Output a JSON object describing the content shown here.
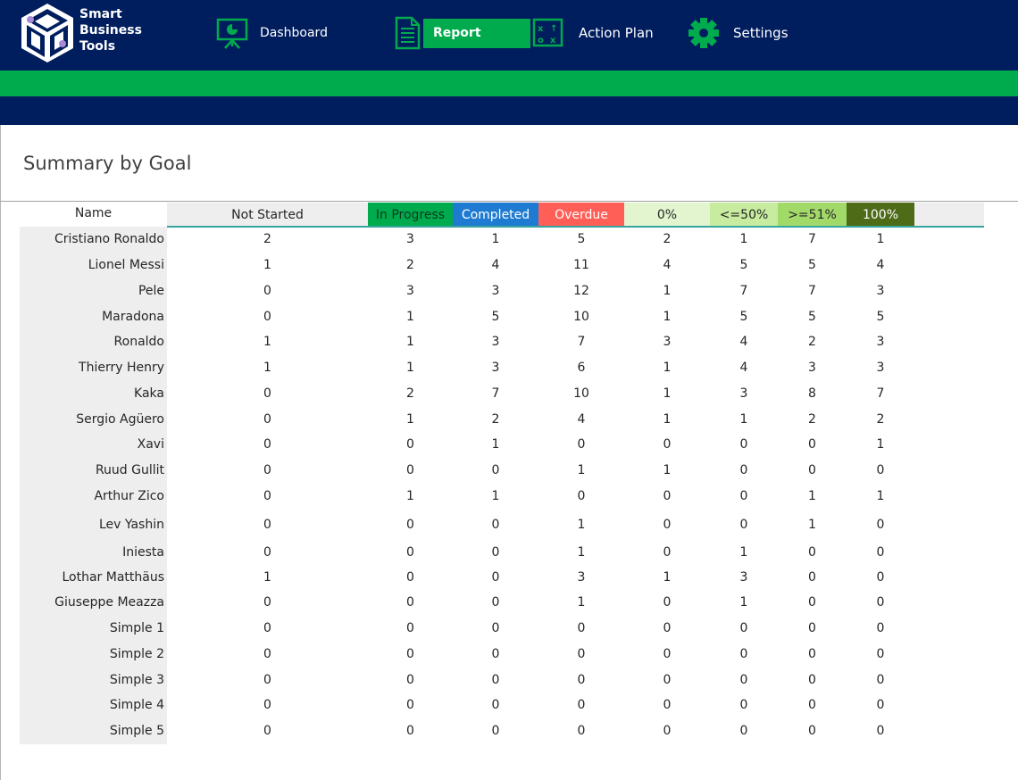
{
  "brand": {
    "lines": [
      "Smart",
      "Business",
      "Tools"
    ]
  },
  "nav": {
    "items": [
      {
        "label": "Dashboard",
        "icon": "presentation-board-icon"
      },
      {
        "label": "Report",
        "icon": "document-icon"
      },
      {
        "label": "Action Plan",
        "icon": "strategy-board-icon"
      },
      {
        "label": "Settings",
        "icon": "gear-icon"
      }
    ],
    "active": "Report"
  },
  "colors": {
    "navy": "#001d5e",
    "green": "#00ab4e",
    "in_progress": "#00ab4e",
    "completed": "#1f7bd1",
    "overdue": "#ff5f57",
    "pct0": "#e2f5cf",
    "pct50": "#c7ec9f",
    "pct51": "#a2da6a",
    "pct100": "#4e6b18"
  },
  "page": {
    "title": "Summary by Goal"
  },
  "table": {
    "name_header": "Name",
    "columns": [
      {
        "key": "ns",
        "label": "Not Started"
      },
      {
        "key": "ip",
        "label": "In Progress"
      },
      {
        "key": "co",
        "label": "Completed"
      },
      {
        "key": "ov",
        "label": "Overdue"
      },
      {
        "key": "p0",
        "label": "0%"
      },
      {
        "key": "p50",
        "label": "<=50%"
      },
      {
        "key": "p51",
        "label": ">=51%"
      },
      {
        "key": "p100",
        "label": "100%"
      }
    ],
    "rows": [
      {
        "name": "Cristiano Ronaldo",
        "values": [
          "2",
          "3",
          "1",
          "5",
          "2",
          "1",
          "7",
          "1"
        ]
      },
      {
        "name": "Lionel Messi",
        "values": [
          "1",
          "2",
          "4",
          "11",
          "4",
          "5",
          "5",
          "4"
        ]
      },
      {
        "name": "Pele",
        "values": [
          "0",
          "3",
          "3",
          "12",
          "1",
          "7",
          "7",
          "3"
        ]
      },
      {
        "name": "Maradona",
        "values": [
          "0",
          "1",
          "5",
          "10",
          "1",
          "5",
          "5",
          "5"
        ]
      },
      {
        "name": "Ronaldo",
        "values": [
          "1",
          "1",
          "3",
          "7",
          "3",
          "4",
          "2",
          "3"
        ]
      },
      {
        "name": "Thierry Henry",
        "values": [
          "1",
          "1",
          "3",
          "6",
          "1",
          "4",
          "3",
          "3"
        ]
      },
      {
        "name": "Kaka",
        "values": [
          "0",
          "2",
          "7",
          "10",
          "1",
          "3",
          "8",
          "7"
        ]
      },
      {
        "name": "Sergio Agüero",
        "values": [
          "0",
          "1",
          "2",
          "4",
          "1",
          "1",
          "2",
          "2"
        ]
      },
      {
        "name": "Xavi",
        "values": [
          "0",
          "0",
          "1",
          "0",
          "0",
          "0",
          "0",
          "1"
        ]
      },
      {
        "name": "Ruud Gullit",
        "values": [
          "0",
          "0",
          "0",
          "1",
          "1",
          "0",
          "0",
          "0"
        ]
      },
      {
        "name": "Arthur Zico",
        "values": [
          "0",
          "1",
          "1",
          "0",
          "0",
          "0",
          "1",
          "1"
        ]
      },
      {
        "name": "Lev Yashin",
        "values": [
          "0",
          "0",
          "0",
          "1",
          "0",
          "0",
          "1",
          "0"
        ]
      },
      {
        "name": "Iniesta",
        "values": [
          "0",
          "0",
          "0",
          "1",
          "0",
          "1",
          "0",
          "0"
        ]
      },
      {
        "name": "Lothar Matthäus",
        "values": [
          "1",
          "0",
          "0",
          "3",
          "1",
          "3",
          "0",
          "0"
        ]
      },
      {
        "name": "Giuseppe Meazza",
        "values": [
          "0",
          "0",
          "0",
          "1",
          "0",
          "1",
          "0",
          "0"
        ]
      },
      {
        "name": "Simple 1",
        "values": [
          "0",
          "0",
          "0",
          "0",
          "0",
          "0",
          "0",
          "0"
        ]
      },
      {
        "name": "Simple 2",
        "values": [
          "0",
          "0",
          "0",
          "0",
          "0",
          "0",
          "0",
          "0"
        ]
      },
      {
        "name": "Simple 3",
        "values": [
          "0",
          "0",
          "0",
          "0",
          "0",
          "0",
          "0",
          "0"
        ]
      },
      {
        "name": "Simple 4",
        "values": [
          "0",
          "0",
          "0",
          "0",
          "0",
          "0",
          "0",
          "0"
        ]
      },
      {
        "name": "Simple 5",
        "values": [
          "0",
          "0",
          "0",
          "0",
          "0",
          "0",
          "0",
          "0"
        ]
      }
    ]
  }
}
